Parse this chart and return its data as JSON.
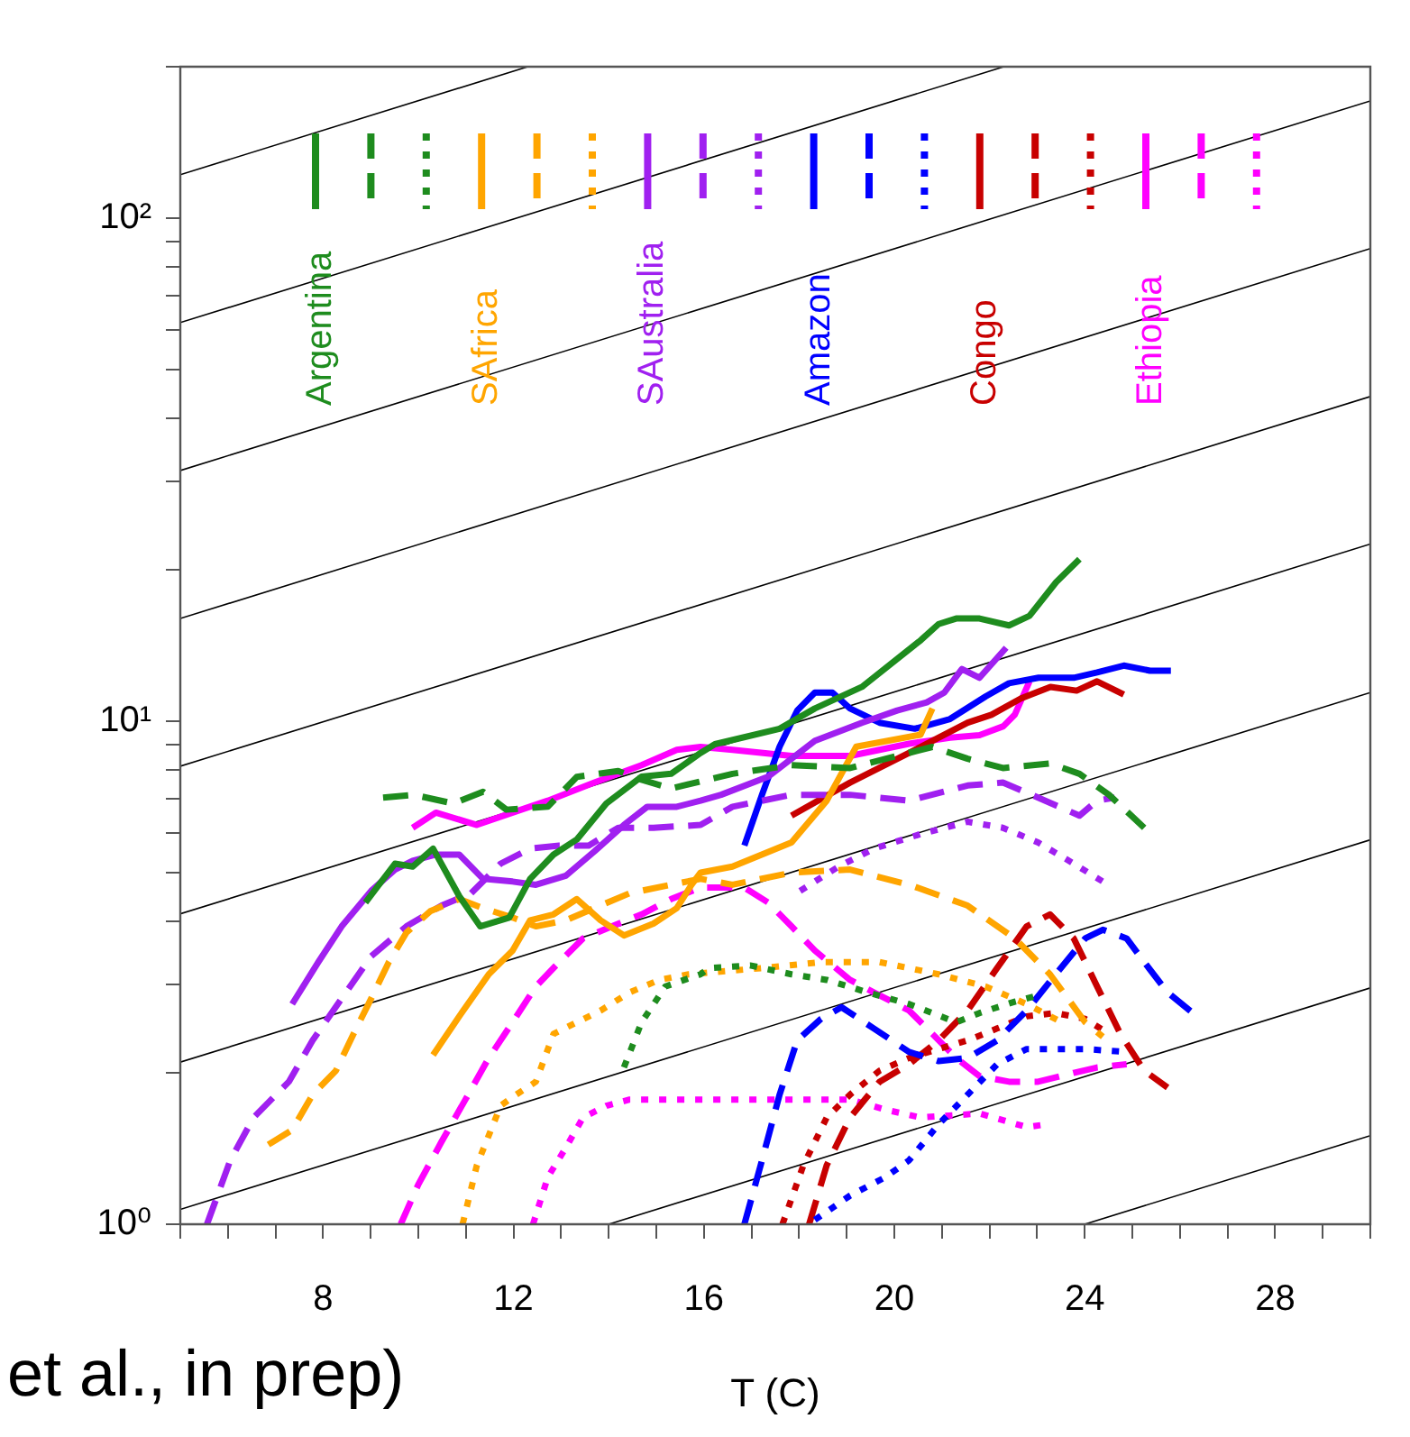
{
  "chart_data": {
    "type": "line",
    "xlabel": "T (C)",
    "annotations": [
      "et al., in prep)"
    ],
    "log": "y",
    "grid": false,
    "legend": "top",
    "xlim": [
      5,
      30
    ],
    "ylim": [
      1,
      200
    ],
    "xticks": [
      {
        "value": 5,
        "label": null
      },
      {
        "value": 6,
        "label": null
      },
      {
        "value": 7,
        "label": null
      },
      8,
      {
        "value": 9,
        "label": null
      },
      {
        "value": 10,
        "label": null
      },
      {
        "value": 11,
        "label": null
      },
      12,
      {
        "value": 13,
        "label": null
      },
      {
        "value": 14,
        "label": null
      },
      {
        "value": 15,
        "label": null
      },
      16,
      {
        "value": 17,
        "label": null
      },
      {
        "value": 18,
        "label": null
      },
      {
        "value": 19,
        "label": null
      },
      20,
      {
        "value": 21,
        "label": null
      },
      {
        "value": 22,
        "label": null
      },
      {
        "value": 23,
        "label": null
      },
      24,
      {
        "value": 25,
        "label": null
      },
      {
        "value": 26,
        "label": null
      },
      {
        "value": 27,
        "label": null
      },
      28,
      {
        "value": 29,
        "label": null
      },
      {
        "value": 30,
        "label": null
      }
    ],
    "yticks": [
      {
        "value": 1,
        "label": "10⁰"
      },
      {
        "value": 2,
        "label": null
      },
      {
        "value": 3,
        "label": null
      },
      {
        "value": 4,
        "label": null
      },
      {
        "value": 5,
        "label": null
      },
      {
        "value": 6,
        "label": null
      },
      {
        "value": 7,
        "label": null
      },
      {
        "value": 8,
        "label": null
      },
      {
        "value": 9,
        "label": null
      },
      {
        "value": 10,
        "label": "10¹"
      },
      {
        "value": 20,
        "label": null
      },
      {
        "value": 30,
        "label": null
      },
      {
        "value": 40,
        "label": null
      },
      {
        "value": 50,
        "label": null
      },
      {
        "value": 60,
        "label": null
      },
      {
        "value": 70,
        "label": null
      },
      {
        "value": 80,
        "label": null
      },
      {
        "value": 90,
        "label": null
      },
      {
        "value": 100,
        "label": "10²"
      },
      {
        "value": 200,
        "label": null
      }
    ],
    "series": [
      {
        "name": "Argentina",
        "color": "#1e8c1e",
        "line_style": "solid",
        "x": [
          8.89,
          9.51,
          9.88,
          10.31,
          10.86,
          11.3,
          11.91,
          12.35,
          12.84,
          13.33,
          13.95,
          14.69,
          15.31,
          15.93,
          16.23,
          17.59,
          18.33,
          19.32,
          20.56,
          20.93,
          21.3,
          21.79,
          22.41,
          22.84,
          23.4,
          23.89
        ],
        "values": [
          4.36,
          5.21,
          5.14,
          5.58,
          4.49,
          3.91,
          4.07,
          4.86,
          5.43,
          5.82,
          6.86,
          7.76,
          7.86,
          8.65,
          9.0,
          9.66,
          10.6,
          11.7,
          14.5,
          15.6,
          16.0,
          16.0,
          15.5,
          16.2,
          18.9,
          21.0
        ]
      },
      {
        "color": "#1e8c1e",
        "line_style": "dashed",
        "x": [
          9.26,
          9.9,
          10.74,
          11.36,
          11.85,
          12.72,
          13.33,
          14.2,
          14.69,
          15.31,
          16.6,
          17.84,
          19.07,
          20.8,
          21.54,
          22.28,
          23.27,
          23.89,
          24.51,
          25.25
        ],
        "values": [
          7.05,
          7.14,
          6.86,
          7.24,
          6.67,
          6.76,
          7.75,
          7.96,
          7.65,
          7.35,
          7.86,
          8.18,
          8.07,
          8.89,
          8.42,
          8.07,
          8.24,
          7.86,
          7.14,
          6.14
        ]
      },
      {
        "color": "#1e8c1e",
        "line_style": "dotted",
        "x": [
          14.32,
          14.69,
          15.19,
          15.93,
          16.11,
          16.97,
          17.84,
          18.58,
          19.44,
          20.31,
          21.3,
          21.79,
          22.53,
          23.02
        ],
        "values": [
          2.05,
          2.52,
          2.97,
          3.14,
          3.23,
          3.27,
          3.14,
          3.06,
          2.89,
          2.74,
          2.52,
          2.63,
          2.77,
          2.85
        ]
      },
      {
        "name": "SAfrica",
        "color": "#ffa500",
        "line_style": "solid",
        "x": [
          10.31,
          10.86,
          11.48,
          11.98,
          12.35,
          12.84,
          13.33,
          13.83,
          14.32,
          14.94,
          15.43,
          15.74,
          15.93,
          16.6,
          17.84,
          18.58,
          19.2,
          20.55,
          20.8
        ],
        "values": [
          2.17,
          2.59,
          3.14,
          3.5,
          4.02,
          4.13,
          4.43,
          4.02,
          3.75,
          3.96,
          4.25,
          4.73,
          5.0,
          5.14,
          5.74,
          6.95,
          8.9,
          9.4,
          10.6
        ]
      },
      {
        "color": "#ffa500",
        "line_style": "dashed",
        "x": [
          6.85,
          7.35,
          7.78,
          8.27,
          8.64,
          9.01,
          9.38,
          9.75,
          10.25,
          10.86,
          11.36,
          11.98,
          12.47,
          13.1,
          13.7,
          14.44,
          15.31,
          15.93,
          16.6,
          17.84,
          19.07,
          20.31,
          21.54,
          22.53,
          23.27,
          24.01,
          24.38
        ],
        "values": [
          1.44,
          1.54,
          1.81,
          2.02,
          2.39,
          2.81,
          3.32,
          3.8,
          4.19,
          4.43,
          4.25,
          4.07,
          3.91,
          4.02,
          4.25,
          4.55,
          4.73,
          4.86,
          4.73,
          5.0,
          5.07,
          4.73,
          4.3,
          3.7,
          3.14,
          2.52,
          2.36
        ]
      },
      {
        "color": "#ffa500",
        "line_style": "dotted",
        "x": [
          10.93,
          11.23,
          11.73,
          11.98,
          12.47,
          12.84,
          13.33,
          13.83,
          14.44,
          15.06,
          15.68,
          17.22,
          18.46,
          19.69,
          20.93,
          21.91,
          22.78,
          23.52
        ],
        "values": [
          1.0,
          1.31,
          1.72,
          1.79,
          1.92,
          2.39,
          2.52,
          2.66,
          2.89,
          3.06,
          3.14,
          3.23,
          3.32,
          3.32,
          3.14,
          2.97,
          2.74,
          2.52
        ]
      },
      {
        "name": "SAustralia",
        "color": "#a020f0",
        "line_style": "solid",
        "x": [
          7.35,
          7.9,
          8.39,
          9.01,
          9.51,
          9.88,
          10.37,
          10.86,
          11.36,
          11.98,
          12.47,
          13.1,
          13.7,
          14.32,
          14.81,
          15.43,
          15.93,
          16.36,
          17.35,
          18.33,
          19.32,
          20.06,
          20.68,
          21.05,
          21.42,
          21.79,
          22.35
        ],
        "values": [
          2.74,
          3.32,
          3.91,
          4.6,
          5.07,
          5.28,
          5.43,
          5.43,
          4.86,
          4.8,
          4.73,
          4.93,
          5.51,
          6.22,
          6.76,
          6.76,
          6.95,
          7.14,
          7.76,
          9.14,
          9.93,
          10.5,
          10.9,
          11.4,
          12.7,
          12.2,
          14.0
        ]
      },
      {
        "color": "#a020f0",
        "line_style": "dashed",
        "x": [
          5.56,
          6.05,
          6.54,
          7.28,
          7.78,
          8.39,
          9.01,
          9.75,
          10.49,
          11.11,
          11.73,
          12.35,
          12.96,
          13.58,
          14.2,
          14.94,
          15.93,
          16.6,
          17.84,
          19.07,
          20.31,
          21.54,
          22.28,
          23.02,
          23.89,
          24.26,
          24.63
        ],
        "values": [
          1.0,
          1.34,
          1.63,
          1.92,
          2.32,
          2.81,
          3.41,
          3.91,
          4.3,
          4.55,
          5.21,
          5.58,
          5.66,
          5.66,
          6.14,
          6.14,
          6.22,
          6.76,
          7.14,
          7.14,
          6.95,
          7.45,
          7.55,
          7.05,
          6.49,
          6.95,
          7.05
        ]
      },
      {
        "color": "#a020f0",
        "line_style": "dotted",
        "x": [
          18.02,
          18.83,
          19.57,
          20.56,
          21.54,
          22.28,
          23.02,
          23.77,
          24.38
        ],
        "values": [
          4.6,
          5.14,
          5.58,
          5.97,
          6.31,
          6.14,
          5.74,
          5.21,
          4.8
        ]
      },
      {
        "name": "Amazon",
        "color": "#0000ff",
        "line_style": "solid",
        "x": [
          16.85,
          17.22,
          17.59,
          17.96,
          18.33,
          18.7,
          19.07,
          19.69,
          20.43,
          21.17,
          21.92,
          22.41,
          23.03,
          23.77,
          24.26,
          24.82,
          25.37,
          25.81
        ],
        "values": [
          5.66,
          7.14,
          8.9,
          10.5,
          11.4,
          11.4,
          10.6,
          9.93,
          9.66,
          10.1,
          11.2,
          11.9,
          12.2,
          12.2,
          12.5,
          12.9,
          12.6,
          12.6
        ]
      },
      {
        "color": "#0000ff",
        "line_style": "dashed",
        "x": [
          16.85,
          17.22,
          17.59,
          17.96,
          18.46,
          18.89,
          19.57,
          20.31,
          20.93,
          21.54,
          22.16,
          22.78,
          23.39,
          24.01,
          24.38,
          24.88,
          25.25,
          25.74,
          26.36
        ],
        "values": [
          1.0,
          1.34,
          1.81,
          2.32,
          2.56,
          2.7,
          2.45,
          2.2,
          2.11,
          2.14,
          2.32,
          2.66,
          3.14,
          3.7,
          3.85,
          3.7,
          3.32,
          2.89,
          2.59
        ]
      },
      {
        "color": "#0000ff",
        "line_style": "dotted",
        "x": [
          18.33,
          19.07,
          19.81,
          20.31,
          20.93,
          21.54,
          22.16,
          22.78,
          23.39,
          24.01,
          24.88
        ],
        "values": [
          1.02,
          1.14,
          1.24,
          1.34,
          1.58,
          1.81,
          2.08,
          2.23,
          2.23,
          2.23,
          2.2
        ]
      },
      {
        "name": "Congo",
        "color": "#c80000",
        "line_style": "solid",
        "x": [
          17.84,
          19.07,
          20.31,
          21.54,
          22.04,
          22.66,
          23.28,
          23.83,
          24.26,
          24.82
        ],
        "values": [
          6.49,
          7.55,
          8.65,
          9.93,
          10.3,
          11.1,
          11.7,
          11.5,
          12.0,
          11.3
        ]
      },
      {
        "color": "#c80000",
        "line_style": "dashed",
        "x": [
          18.21,
          18.58,
          19.07,
          19.69,
          20.31,
          20.93,
          21.54,
          22.16,
          22.78,
          23.27,
          23.77,
          24.26,
          24.75,
          25.25,
          25.74
        ],
        "values": [
          1.0,
          1.31,
          1.63,
          1.92,
          2.08,
          2.32,
          2.66,
          3.23,
          3.91,
          4.13,
          3.7,
          2.97,
          2.39,
          2.02,
          1.87
        ]
      },
      {
        "color": "#c80000",
        "line_style": "dotted",
        "x": [
          17.65,
          18.09,
          18.58,
          19.07,
          19.69,
          20.31,
          20.93,
          21.54,
          22.16,
          22.78,
          23.39,
          24.01,
          24.51
        ],
        "values": [
          1.0,
          1.31,
          1.63,
          1.81,
          2.02,
          2.14,
          2.23,
          2.32,
          2.45,
          2.59,
          2.63,
          2.56,
          2.39
        ]
      },
      {
        "name": "Ethiopia",
        "color": "#ff00ff",
        "line_style": "solid",
        "x": [
          9.88,
          10.37,
          11.23,
          11.98,
          12.72,
          13.7,
          14.69,
          15.43,
          15.93,
          16.6,
          17.84,
          19.07,
          20.31,
          21.17,
          21.79,
          22.29,
          22.53,
          22.84
        ],
        "values": [
          6.14,
          6.58,
          6.22,
          6.58,
          6.95,
          7.55,
          8.18,
          8.77,
          8.89,
          8.77,
          8.53,
          8.53,
          9.02,
          9.27,
          9.38,
          9.77,
          10.3,
          12.0
        ]
      },
      {
        "color": "#ff00ff",
        "line_style": "dashed",
        "x": [
          9.63,
          10.0,
          10.49,
          10.99,
          11.48,
          11.98,
          12.47,
          12.96,
          13.46,
          14.07,
          14.69,
          15.31,
          15.93,
          16.85,
          17.35,
          17.84,
          18.33,
          19.07,
          19.57,
          20.31,
          20.8,
          21.3,
          21.79,
          22.41,
          23.02,
          23.77,
          24.26,
          24.88
        ],
        "values": [
          1.0,
          1.2,
          1.46,
          1.77,
          2.14,
          2.52,
          2.97,
          3.32,
          3.7,
          3.91,
          4.13,
          4.43,
          4.67,
          4.67,
          4.36,
          3.91,
          3.5,
          3.06,
          2.89,
          2.66,
          2.39,
          2.14,
          1.97,
          1.92,
          1.92,
          2.0,
          2.05,
          2.08
        ]
      },
      {
        "color": "#ff00ff",
        "line_style": "dotted",
        "x": [
          12.41,
          12.72,
          13.1,
          13.46,
          13.95,
          14.44,
          15.31,
          15.93,
          16.6,
          17.84,
          19.07,
          19.81,
          20.55,
          21.79,
          22.78,
          23.21
        ],
        "values": [
          1.0,
          1.24,
          1.42,
          1.63,
          1.72,
          1.77,
          1.77,
          1.77,
          1.77,
          1.77,
          1.77,
          1.69,
          1.63,
          1.66,
          1.56,
          1.58
        ]
      },
      {
        "type": "line",
        "color": "#000000",
        "line_style": "solid",
        "x": [
          24,
          30
        ],
        "values": [
          1,
          1.5
        ]
      },
      {
        "type": "line",
        "color": "#000000",
        "line_style": "solid",
        "x": [
          14,
          30
        ],
        "values": [
          1,
          2.95
        ]
      },
      {
        "type": "line",
        "color": "#000000",
        "line_style": "solid",
        "x": [
          5,
          30
        ],
        "values": [
          1.07,
          5.81
        ]
      },
      {
        "type": "line",
        "color": "#000000",
        "line_style": "solid",
        "x": [
          5,
          30
        ],
        "values": [
          2.1,
          11.4
        ]
      },
      {
        "type": "line",
        "color": "#000000",
        "line_style": "solid",
        "x": [
          5,
          30
        ],
        "values": [
          4.14,
          22.5
        ]
      },
      {
        "type": "line",
        "color": "#000000",
        "line_style": "solid",
        "x": [
          5,
          30
        ],
        "values": [
          8.14,
          44.2
        ]
      },
      {
        "type": "line",
        "color": "#000000",
        "line_style": "solid",
        "x": [
          5,
          30
        ],
        "values": [
          16,
          87
        ]
      },
      {
        "type": "line",
        "color": "#000000",
        "line_style": "solid",
        "x": [
          5,
          30
        ],
        "values": [
          31.5,
          171
        ]
      },
      {
        "type": "line",
        "color": "#000000",
        "line_style": "solid",
        "x": [
          5,
          22.3
        ],
        "values": [
          62,
          200
        ]
      },
      {
        "type": "line",
        "color": "#000000",
        "line_style": "solid",
        "x": [
          5,
          12.3
        ],
        "values": [
          122,
          200
        ]
      }
    ]
  }
}
